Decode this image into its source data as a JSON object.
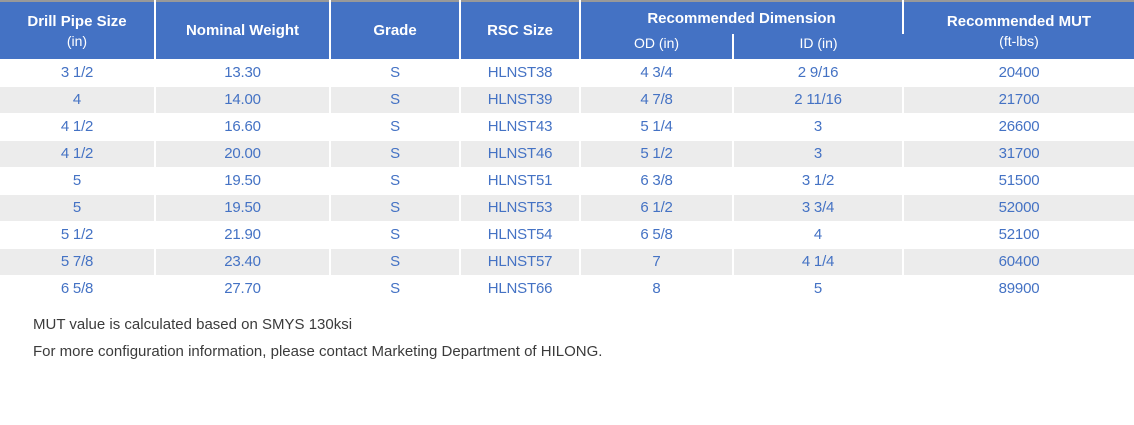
{
  "table": {
    "header": {
      "col1_title": "Drill Pipe Size",
      "col1_unit": "(in)",
      "col2_title": "Nominal Weight",
      "col3_title": "Grade",
      "col4_title": "RSC Size",
      "group_title": "Recommended Dimension",
      "sub_od": "OD (in)",
      "sub_id": "ID (in)",
      "col7_title": "Recommended MUT",
      "col7_unit": "(ft-lbs)"
    },
    "rows": [
      [
        "3 1/2",
        "13.30",
        "S",
        "HLNST38",
        "4 3/4",
        "2 9/16",
        "20400"
      ],
      [
        "4",
        "14.00",
        "S",
        "HLNST39",
        "4 7/8",
        "2 11/16",
        "21700"
      ],
      [
        "4 1/2",
        "16.60",
        "S",
        "HLNST43",
        "5 1/4",
        "3",
        "26600"
      ],
      [
        "4 1/2",
        "20.00",
        "S",
        "HLNST46",
        "5 1/2",
        "3",
        "31700"
      ],
      [
        "5",
        "19.50",
        "S",
        "HLNST51",
        "6 3/8",
        "3 1/2",
        "51500"
      ],
      [
        "5",
        "19.50",
        "S",
        "HLNST53",
        "6 1/2",
        "3 3/4",
        "52000"
      ],
      [
        "5 1/2",
        "21.90",
        "S",
        "HLNST54",
        "6 5/8",
        "4",
        "52100"
      ],
      [
        "5 7/8",
        "23.40",
        "S",
        "HLNST57",
        "7",
        "4 1/4",
        "60400"
      ],
      [
        "6 5/8",
        "27.70",
        "S",
        "HLNST66",
        "8",
        "5",
        "89900"
      ]
    ],
    "colors": {
      "header_bg": "#4472C4",
      "header_text": "#FFFFFF",
      "row_alternate_bg": "#ECECEC",
      "row_bg": "#FFFFFF",
      "data_text": "#4472C4",
      "top_border": "#999999"
    }
  },
  "notes": {
    "line1": "MUT value is calculated based on SMYS 130ksi",
    "line2": "For more configuration information, please contact Marketing Department of HILONG."
  }
}
